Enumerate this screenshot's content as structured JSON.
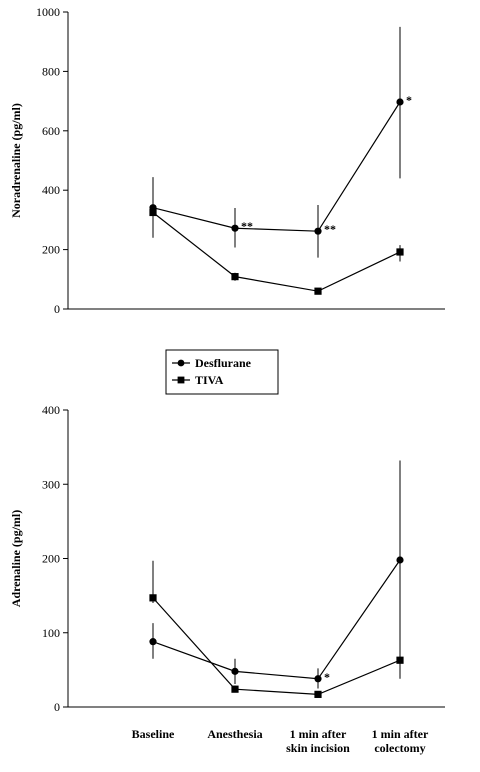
{
  "chart_data": [
    {
      "type": "line",
      "ylabel": "Noradrenaline (pg/ml)",
      "ylim": [
        0,
        1000
      ],
      "yticks": [
        "0",
        "200",
        "400",
        "600",
        "800",
        "1000"
      ],
      "categories": [
        "Baseline",
        "Anesthesia",
        "1 min after skin incision",
        "1 min after colectomy"
      ],
      "series": [
        {
          "name": "Desflurane",
          "marker": "circle",
          "values": [
            341,
            272,
            262,
            697
          ],
          "error_low": [
            250,
            207,
            173,
            440
          ],
          "error_high": [
            444,
            340,
            350,
            950
          ],
          "annotations": [
            "",
            "**",
            "**",
            "*"
          ]
        },
        {
          "name": "TIVA",
          "marker": "square",
          "values": [
            325,
            109,
            60,
            192
          ],
          "error_low": [
            240,
            95,
            50,
            160
          ],
          "error_high": [
            345,
            122,
            68,
            215
          ],
          "annotations": [
            "",
            "",
            "",
            ""
          ]
        }
      ]
    },
    {
      "type": "line",
      "ylabel": "Adrenaline (pg/ml)",
      "ylim": [
        0,
        400
      ],
      "yticks": [
        "0",
        "100",
        "200",
        "300",
        "400"
      ],
      "categories": [
        "Baseline",
        "Anesthesia",
        "1 min after skin incision",
        "1 min after colectomy"
      ],
      "series": [
        {
          "name": "Desflurane",
          "marker": "circle",
          "values": [
            88,
            48,
            38,
            198
          ],
          "error_low": [
            65,
            31,
            25,
            38
          ],
          "error_high": [
            113,
            65,
            52,
            332
          ],
          "annotations": [
            "",
            "",
            "*",
            ""
          ]
        },
        {
          "name": "TIVA",
          "marker": "square",
          "values": [
            147,
            24,
            17,
            63
          ],
          "error_low": [
            140,
            20,
            14,
            56
          ],
          "error_high": [
            197,
            29,
            21,
            85
          ],
          "annotations": [
            "",
            "",
            "",
            ""
          ]
        }
      ]
    }
  ],
  "legend": {
    "items": [
      {
        "label": "Desflurane",
        "marker": "circle"
      },
      {
        "label": "TIVA",
        "marker": "square"
      }
    ]
  },
  "categories_display": [
    [
      "Baseline"
    ],
    [
      "Anesthesia"
    ],
    [
      "1 min after",
      "skin incision"
    ],
    [
      "1 min after",
      "colectomy"
    ]
  ]
}
